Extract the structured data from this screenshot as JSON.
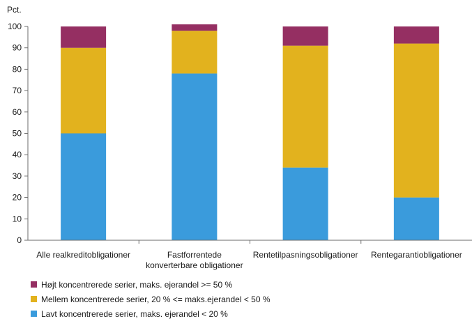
{
  "chart_data": {
    "type": "bar",
    "stacked": true,
    "ylabel": "Pct.",
    "ylim": [
      0,
      100
    ],
    "yticks": [
      0,
      10,
      20,
      30,
      40,
      50,
      60,
      70,
      80,
      90,
      100
    ],
    "grid": false,
    "legend_position": "bottom-left",
    "categories": [
      [
        "Alle realkreditobligationer"
      ],
      [
        "Fastforrentede",
        "konverterbare obligationer"
      ],
      [
        "Rentetilpasningsobligationer"
      ],
      [
        "Rentegarantiobligationer"
      ]
    ],
    "series": [
      {
        "name": "Lavt koncentrerede serier, maks. ejerandel < 20 %",
        "color": "#3a9bdc",
        "values": [
          50,
          78,
          34,
          20
        ]
      },
      {
        "name": "Mellem koncentrerede serier, 20 % <= maks.ejerandel < 50 %",
        "color": "#e2b21e",
        "values": [
          40,
          20,
          57,
          72
        ]
      },
      {
        "name": "Højt koncentrerede serier, maks. ejerandel >= 50 %",
        "color": "#952f62",
        "values": [
          10,
          3,
          9,
          8
        ]
      }
    ]
  }
}
